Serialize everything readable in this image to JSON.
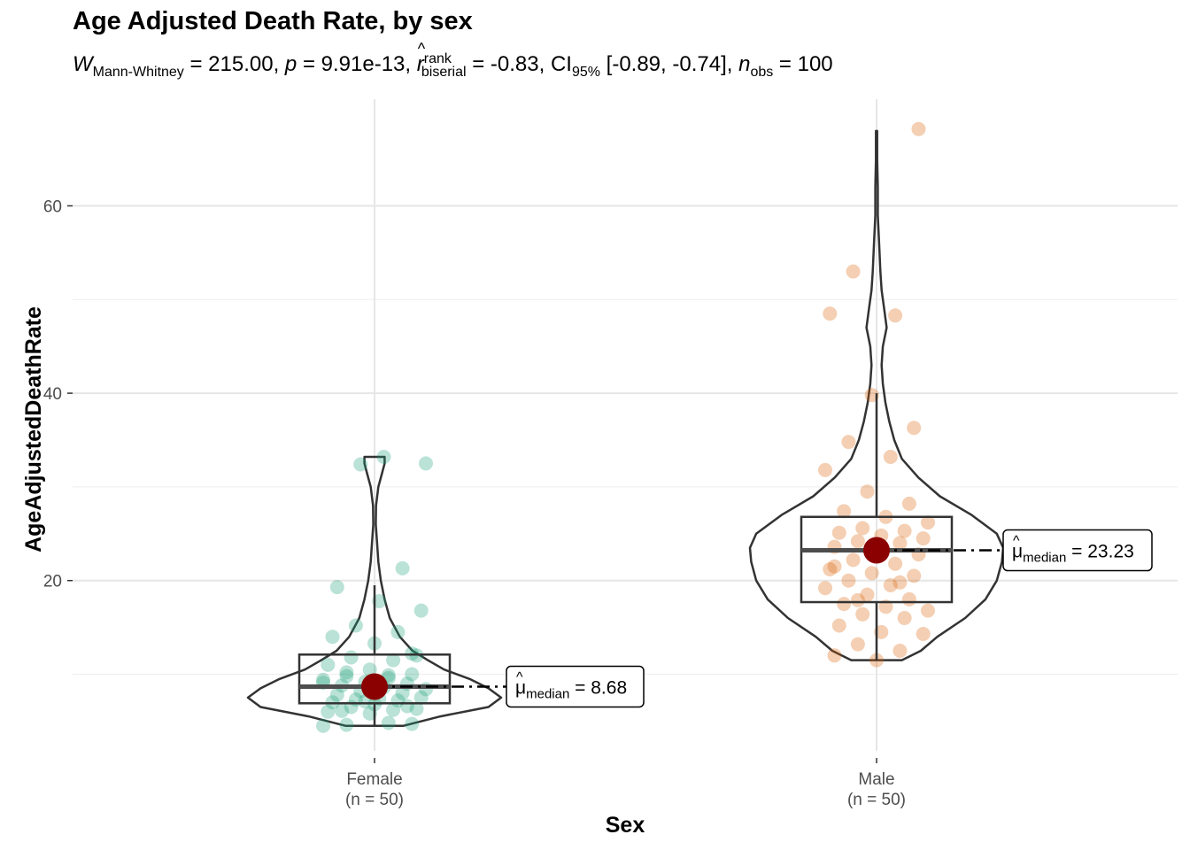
{
  "chart_data": {
    "type": "violin-box-scatter",
    "title": "Age Adjusted Death Rate, by sex",
    "subtitle": {
      "w_label": "W",
      "w_sub": "Mann-Whitney",
      "w_value": "= 215.00,",
      "p_label": "p",
      "p_value": "= 9.91e-13,",
      "r_label": "r",
      "r_sup": "rank",
      "r_sub": "biserial",
      "r_value": "= -0.83,",
      "ci_label": "CI",
      "ci_sub": "95%",
      "ci_value": "[-0.89, -0.74],",
      "n_label": "n",
      "n_sub": "obs",
      "n_value": "= 100"
    },
    "xlabel": "Sex",
    "ylabel": "AgeAdjustedDeathRate",
    "ylim": [
      4,
      69
    ],
    "yticks": [
      20,
      40,
      60
    ],
    "grid": true,
    "groups": [
      {
        "name": "Female",
        "n_label": "(n = 50)",
        "color": "#1B9E77",
        "median": 8.68,
        "median_label_mu": "μ",
        "median_label_sub": "median",
        "median_label_value": "= 8.68",
        "box": {
          "q1": 6.9,
          "median": 8.68,
          "q3": 12.1,
          "whisker_low": 4.5,
          "whisker_high": 19.5
        },
        "violin": [
          [
            4.5,
            0.23
          ],
          [
            5.5,
            0.52
          ],
          [
            6.5,
            0.9
          ],
          [
            7.5,
            1.0
          ],
          [
            8.5,
            0.9
          ],
          [
            9.5,
            0.75
          ],
          [
            10.5,
            0.55
          ],
          [
            11.5,
            0.42
          ],
          [
            12.5,
            0.3
          ],
          [
            14,
            0.2
          ],
          [
            16,
            0.12
          ],
          [
            18,
            0.08
          ],
          [
            20,
            0.05
          ],
          [
            22,
            0.03
          ],
          [
            24,
            0.02
          ],
          [
            26,
            0.01
          ],
          [
            28,
            0.012
          ],
          [
            30,
            0.03
          ],
          [
            31.5,
            0.06
          ],
          [
            32.5,
            0.08
          ],
          [
            33.2,
            0.08
          ]
        ],
        "points": [
          4.5,
          4.8,
          4.6,
          4.7,
          5.8,
          6.0,
          6.2,
          6.5,
          6.3,
          6.8,
          7.0,
          7.2,
          7.3,
          7.5,
          7.4,
          7.8,
          8.0,
          8.2,
          8.4,
          8.6,
          8.8,
          9.0,
          9.2,
          9.4,
          9.6,
          9.8,
          10.0,
          10.5,
          11.0,
          11.5,
          11.8,
          12.0,
          13.3,
          14.0,
          14.5,
          15.2,
          16.8,
          17.8,
          19.3,
          21.3,
          32.4,
          32.5,
          33.2,
          6.1,
          6.6,
          7.1,
          9.1,
          9.9,
          10.2,
          12.2
        ]
      },
      {
        "name": "Male",
        "n_label": "(n = 50)",
        "color": "#D95F02",
        "median": 23.23,
        "median_label_mu": "μ",
        "median_label_sub": "median",
        "median_label_value": "= 23.23",
        "box": {
          "q1": 17.7,
          "median": 23.23,
          "q3": 26.8,
          "whisker_low": 11.5,
          "whisker_high": 40
        },
        "violin": [
          [
            11.5,
            0.2
          ],
          [
            12.5,
            0.35
          ],
          [
            14,
            0.48
          ],
          [
            16,
            0.7
          ],
          [
            18,
            0.86
          ],
          [
            20,
            0.95
          ],
          [
            22,
            0.99
          ],
          [
            23.5,
            1.0
          ],
          [
            25,
            0.95
          ],
          [
            27,
            0.75
          ],
          [
            29,
            0.5
          ],
          [
            31,
            0.33
          ],
          [
            33,
            0.2
          ],
          [
            35,
            0.14
          ],
          [
            37,
            0.1
          ],
          [
            39,
            0.07
          ],
          [
            41,
            0.05
          ],
          [
            43,
            0.04
          ],
          [
            45,
            0.05
          ],
          [
            47,
            0.08
          ],
          [
            49,
            0.06
          ],
          [
            51,
            0.04
          ],
          [
            53,
            0.03
          ],
          [
            56,
            0.02
          ],
          [
            59,
            0.01
          ],
          [
            62,
            0.01
          ],
          [
            65,
            0.005
          ],
          [
            68,
            0.005
          ]
        ],
        "points": [
          11.5,
          12.0,
          12.5,
          13.2,
          14.3,
          14.5,
          15.2,
          16.0,
          16.4,
          16.8,
          17.2,
          17.5,
          18.0,
          18.5,
          19.2,
          19.5,
          20.0,
          20.5,
          20.8,
          21.2,
          21.8,
          22.2,
          22.8,
          23.2,
          23.6,
          24.0,
          24.2,
          24.5,
          24.8,
          25.1,
          25.3,
          25.6,
          26.2,
          26.8,
          27.4,
          28.2,
          29.5,
          31.8,
          33.2,
          34.8,
          36.3,
          39.8,
          48.5,
          48.3,
          53.0,
          68.2,
          23.8,
          21.5,
          19.8,
          17.9
        ]
      }
    ]
  }
}
